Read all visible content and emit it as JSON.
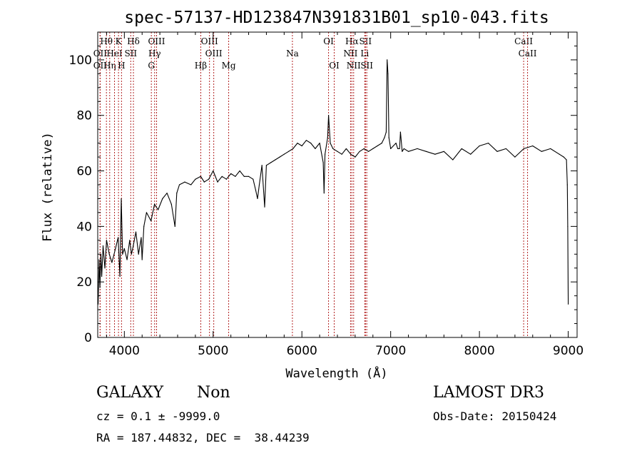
{
  "chart_data": {
    "type": "line",
    "title": "spec-57137-HD123847N391831B01_sp10-043.fits",
    "xlabel": "Wavelength (Å)",
    "ylabel": "Flux (relative)",
    "xlim": [
      3700,
      9100
    ],
    "ylim": [
      0,
      110
    ],
    "x_ticks": [
      4000,
      5000,
      6000,
      7000,
      8000,
      9000
    ],
    "y_ticks": [
      0,
      20,
      40,
      60,
      80,
      100
    ],
    "grid": false,
    "line_color": "#000000",
    "marker_color": "#b22222",
    "series": [
      {
        "x": [
          3705,
          3715,
          3725,
          3735,
          3745,
          3760,
          3780,
          3800,
          3830,
          3860,
          3900,
          3930,
          3950,
          3965,
          3980,
          4000,
          4030,
          4060,
          4080,
          4100,
          4130,
          4160,
          4190,
          4200,
          4220,
          4250,
          4300,
          4340,
          4380,
          4430,
          4480,
          4530,
          4570,
          4590,
          4620,
          4680,
          4750,
          4800,
          4860,
          4900,
          4950,
          5000,
          5050,
          5100,
          5150,
          5200,
          5250,
          5300,
          5350,
          5400,
          5450,
          5480,
          5500,
          5520,
          5550,
          5580,
          5600,
          5650,
          5700,
          5750,
          5800,
          5850,
          5900,
          5950,
          6000,
          6050,
          6100,
          6150,
          6200,
          6240,
          6250,
          6260,
          6290,
          6300,
          6320,
          6350,
          6400,
          6450,
          6500,
          6550,
          6600,
          6650,
          6700,
          6750,
          6800,
          6850,
          6900,
          6930,
          6950,
          6960,
          6970,
          6980,
          7000,
          7030,
          7060,
          7080,
          7100,
          7110,
          7130,
          7150,
          7200,
          7300,
          7400,
          7500,
          7600,
          7700,
          7800,
          7900,
          8000,
          8100,
          8200,
          8300,
          8400,
          8500,
          8600,
          8700,
          8800,
          8900,
          8950,
          8980,
          8990,
          8995,
          9000
        ],
        "y": [
          12,
          28,
          18,
          30,
          22,
          33,
          25,
          35,
          30,
          27,
          32,
          36,
          22,
          50,
          30,
          32,
          28,
          35,
          30,
          33,
          38,
          30,
          36,
          28,
          40,
          45,
          42,
          48,
          46,
          50,
          52,
          48,
          40,
          52,
          55,
          56,
          55,
          57,
          58,
          56,
          57,
          60,
          56,
          58,
          57,
          59,
          58,
          60,
          58,
          58,
          57,
          53,
          50,
          55,
          62,
          47,
          62,
          63,
          64,
          65,
          66,
          67,
          68,
          70,
          69,
          71,
          70,
          68,
          70,
          63,
          52,
          66,
          72,
          80,
          70,
          68,
          67,
          66,
          68,
          66,
          65,
          67,
          68,
          67,
          68,
          69,
          70,
          72,
          74,
          100,
          95,
          72,
          68,
          69,
          70,
          68,
          68,
          74,
          67,
          68,
          67,
          68,
          67,
          66,
          67,
          64,
          68,
          66,
          69,
          70,
          67,
          68,
          65,
          68,
          69,
          67,
          68,
          66,
          65,
          64,
          55,
          40,
          12
        ]
      }
    ],
    "line_markers": [
      {
        "label": "OII",
        "x": 3727,
        "row": 2
      },
      {
        "label": "OII",
        "x": 3727,
        "row": 3
      },
      {
        "label": "Hθ",
        "x": 3798,
        "row": 1
      },
      {
        "label": "Hη",
        "x": 3835,
        "row": 3
      },
      {
        "label": "HeI",
        "x": 3889,
        "row": 2
      },
      {
        "label": "K",
        "x": 3934,
        "row": 1
      },
      {
        "label": "H",
        "x": 3968,
        "row": 3
      },
      {
        "label": "Hδ",
        "x": 4102,
        "row": 1
      },
      {
        "label": "SII",
        "x": 4072,
        "row": 2
      },
      {
        "label": "OIII",
        "x": 4363,
        "row": 1
      },
      {
        "label": "Hγ",
        "x": 4341,
        "row": 2
      },
      {
        "label": "G",
        "x": 4304,
        "row": 3
      },
      {
        "label": "OIII",
        "x": 4959,
        "row": 1
      },
      {
        "label": "OIII",
        "x": 5007,
        "row": 2
      },
      {
        "label": "Hβ",
        "x": 4861,
        "row": 3
      },
      {
        "label": "Mg",
        "x": 5175,
        "row": 3
      },
      {
        "label": "Na",
        "x": 5893,
        "row": 2
      },
      {
        "label": "OI",
        "x": 6300,
        "row": 1
      },
      {
        "label": "OI",
        "x": 6364,
        "row": 3
      },
      {
        "label": "Hα",
        "x": 6563,
        "row": 1
      },
      {
        "label": "NII",
        "x": 6548,
        "row": 2
      },
      {
        "label": "NII",
        "x": 6583,
        "row": 3
      },
      {
        "label": "SII",
        "x": 6716,
        "row": 1
      },
      {
        "label": "Li",
        "x": 6708,
        "row": 2
      },
      {
        "label": "SII",
        "x": 6731,
        "row": 3
      },
      {
        "label": "CaII",
        "x": 8498,
        "row": 1
      },
      {
        "label": "CaII",
        "x": 8542,
        "row": 2
      }
    ]
  },
  "info": {
    "class_label": "GALAXY",
    "subclass_label": "Non",
    "survey": "LAMOST DR3",
    "cz_line": "cz = 0.1 ± -9999.0",
    "obs_date": "Obs-Date: 20150424",
    "coords_line": "RA = 187.44832, DEC =  38.44239"
  }
}
